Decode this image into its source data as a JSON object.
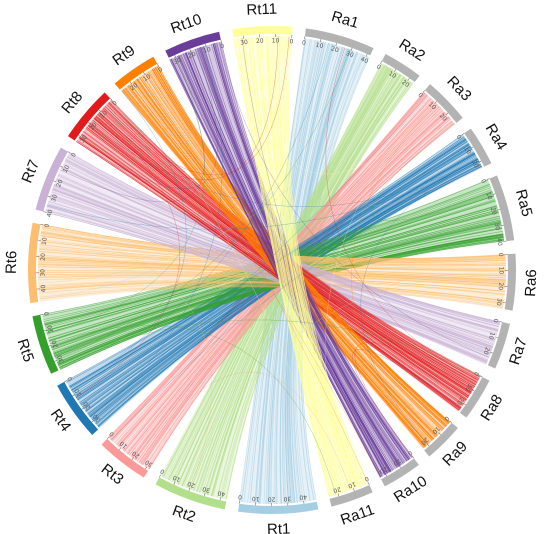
{
  "chart_data": {
    "type": "circos",
    "title": "",
    "chromosomes": [
      {
        "name": "Ra1",
        "size": 42,
        "color": "#a6cee3",
        "ticks": [
          0,
          10,
          20,
          30,
          40
        ]
      },
      {
        "name": "Ra2",
        "size": 24,
        "color": "#b2df8a",
        "ticks": [
          0,
          10,
          20
        ]
      },
      {
        "name": "Ra3",
        "size": 28,
        "color": "#fb9a99",
        "ticks": [
          0,
          10,
          20
        ]
      },
      {
        "name": "Ra4",
        "size": 24,
        "color": "#1f78b4",
        "ticks": [
          0,
          10,
          20
        ]
      },
      {
        "name": "Ra5",
        "size": 40,
        "color": "#33a02c",
        "ticks": [
          0,
          10,
          20,
          30,
          40
        ]
      },
      {
        "name": "Ra6",
        "size": 34,
        "color": "#fdbf6f",
        "ticks": [
          0,
          10,
          20,
          30
        ]
      },
      {
        "name": "Ra7",
        "size": 28,
        "color": "#cab2d6",
        "ticks": [
          0,
          10,
          20
        ]
      },
      {
        "name": "Ra8",
        "size": 26,
        "color": "#e31a1c",
        "ticks": [
          0,
          10,
          20
        ]
      },
      {
        "name": "Ra9",
        "size": 24,
        "color": "#ff7f00",
        "ticks": [
          0,
          10,
          20
        ]
      },
      {
        "name": "Ra10",
        "size": 24,
        "color": "#6a3d9a",
        "ticks": [
          0,
          10,
          20
        ]
      },
      {
        "name": "Ra11",
        "size": 26,
        "color": "#ffff99",
        "ticks": [
          0,
          10,
          20
        ]
      },
      {
        "name": "Rt1",
        "size": 48,
        "color": "#a6cee3",
        "ticks": [
          0,
          10,
          20,
          30,
          40
        ]
      },
      {
        "name": "Rt2",
        "size": 44,
        "color": "#b2df8a",
        "ticks": [
          0,
          10,
          20,
          30,
          40
        ]
      },
      {
        "name": "Rt3",
        "size": 32,
        "color": "#fb9a99",
        "ticks": [
          0,
          10,
          20,
          30
        ]
      },
      {
        "name": "Rt4",
        "size": 36,
        "color": "#1f78b4",
        "ticks": [
          0,
          10,
          20,
          30
        ]
      },
      {
        "name": "Rt5",
        "size": 36,
        "color": "#33a02c",
        "ticks": [
          0,
          10,
          20,
          30
        ]
      },
      {
        "name": "Rt6",
        "size": 48,
        "color": "#fdbf6f",
        "ticks": [
          0,
          10,
          20,
          30,
          40
        ]
      },
      {
        "name": "Rt7",
        "size": 40,
        "color": "#cab2d6",
        "ticks": [
          0,
          10,
          20,
          30,
          40
        ]
      },
      {
        "name": "Rt8",
        "size": 34,
        "color": "#e31a1c",
        "ticks": [
          0,
          10,
          20,
          30
        ]
      },
      {
        "name": "Rt9",
        "size": 28,
        "color": "#ff7f00",
        "ticks": [
          0,
          10,
          20
        ]
      },
      {
        "name": "Rt10",
        "size": 34,
        "color": "#6a3d9a",
        "ticks": [
          0,
          10,
          20,
          30
        ]
      },
      {
        "name": "Rt11",
        "size": 36,
        "color": "#ffff99",
        "ticks": [
          0,
          10,
          20,
          30
        ]
      }
    ],
    "links": [
      {
        "from": "Ra1",
        "to": "Rt1"
      },
      {
        "from": "Ra2",
        "to": "Rt2"
      },
      {
        "from": "Ra3",
        "to": "Rt3"
      },
      {
        "from": "Ra4",
        "to": "Rt4"
      },
      {
        "from": "Ra5",
        "to": "Rt5"
      },
      {
        "from": "Ra6",
        "to": "Rt6"
      },
      {
        "from": "Ra7",
        "to": "Rt7"
      },
      {
        "from": "Ra8",
        "to": "Rt8"
      },
      {
        "from": "Ra9",
        "to": "Rt9"
      },
      {
        "from": "Ra10",
        "to": "Rt10"
      },
      {
        "from": "Ra11",
        "to": "Rt11"
      }
    ]
  }
}
